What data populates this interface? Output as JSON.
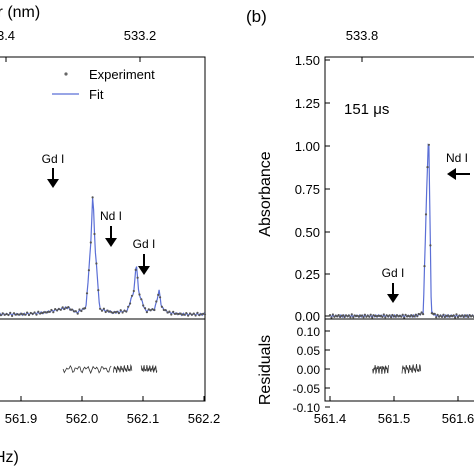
{
  "chart_data": [
    {
      "type": "line",
      "panel_label": "",
      "top_axis_label": "ir (nm)",
      "top_ticks": [
        "3.4",
        "533.2"
      ],
      "xlabel": "Hz)",
      "x_ticks": [
        "561.9",
        "562.0",
        "562.1",
        "562.2"
      ],
      "xlim": [
        561.75,
        562.2
      ],
      "main_ylim": [
        -0.05,
        1.5
      ],
      "residual_ylim": [
        -0.1,
        0.1
      ],
      "legend": [
        {
          "label": "Experiment",
          "marker": "dot",
          "color": "#666666"
        },
        {
          "label": "Fit",
          "marker": "line",
          "color": "#5b6fd6"
        }
      ],
      "annotations": [
        {
          "text": "Gd I",
          "x": 561.955,
          "y": 0.8,
          "arrow": "down"
        },
        {
          "text": "Nd I",
          "x": 562.05,
          "y": 0.35,
          "arrow": "down"
        },
        {
          "text": "Gd I",
          "x": 562.1,
          "y": 0.2,
          "arrow": "down"
        }
      ],
      "series": [
        {
          "name": "Fit",
          "x": [
            561.75,
            561.8,
            561.85,
            561.9,
            561.92,
            561.94,
            561.95,
            561.955,
            561.96,
            561.97,
            562.0,
            562.03,
            562.045,
            562.05,
            562.055,
            562.07,
            562.09,
            562.1,
            562.105,
            562.12,
            562.15,
            562.2
          ],
          "values": [
            0.01,
            0.01,
            0.02,
            0.05,
            0.02,
            0.05,
            0.4,
            0.72,
            0.4,
            0.04,
            0.02,
            0.03,
            0.15,
            0.32,
            0.14,
            0.03,
            0.04,
            0.15,
            0.05,
            0.02,
            0.01,
            0.01
          ]
        }
      ]
    },
    {
      "type": "line",
      "panel_label": "(b)",
      "top_ticks": [
        "533.8"
      ],
      "ylabel": "Absorbance",
      "residual_ylabel": "Residuals",
      "x_ticks": [
        "561.4",
        "561.5",
        "561.6"
      ],
      "xlim": [
        561.4,
        561.7
      ],
      "y_ticks": [
        "0.00",
        "0.25",
        "0.50",
        "0.75",
        "1.00",
        "1.25",
        "1.50"
      ],
      "main_ylim": [
        -0.05,
        1.5
      ],
      "residual_ticks": [
        "0.10",
        "0.05",
        "0.00",
        "-0.05",
        "-0.10"
      ],
      "residual_ylim": [
        -0.1,
        0.1
      ],
      "inset_text": "151 μs",
      "annotations": [
        {
          "text": "Nd I",
          "x": 561.585,
          "y": 0.9,
          "arrow": "left"
        },
        {
          "text": "Gd I",
          "x": 561.51,
          "y": 0.06,
          "arrow": "down"
        }
      ],
      "series": [
        {
          "name": "Fit",
          "x": [
            561.4,
            561.5,
            561.56,
            561.575,
            561.58,
            561.585,
            561.59,
            561.6,
            561.7
          ],
          "values": [
            0.0,
            0.0,
            0.0,
            0.02,
            0.6,
            1.1,
            0.02,
            0.0,
            0.0
          ]
        }
      ]
    }
  ]
}
